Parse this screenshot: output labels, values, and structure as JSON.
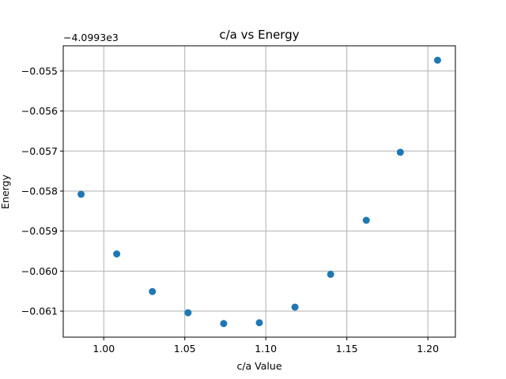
{
  "chart_data": {
    "type": "scatter",
    "title": "c/a vs Energy",
    "xlabel": "c/a Value",
    "ylabel": "Energy",
    "offset_text": "−4.0993e3",
    "x": [
      0.986,
      1.008,
      1.03,
      1.052,
      1.074,
      1.096,
      1.118,
      1.14,
      1.162,
      1.183,
      1.206
    ],
    "y": [
      -0.05808,
      -0.05957,
      -0.06051,
      -0.06104,
      -0.06131,
      -0.06129,
      -0.0609,
      -0.06008,
      -0.05873,
      -0.05703,
      -0.05473
    ],
    "xlim": [
      0.975,
      1.217
    ],
    "ylim": [
      -0.06165,
      -0.05437
    ],
    "xticks": [
      1.0,
      1.05,
      1.1,
      1.15,
      1.2
    ],
    "xtick_labels": [
      "1.00",
      "1.05",
      "1.10",
      "1.15",
      "1.20"
    ],
    "yticks": [
      -0.061,
      -0.06,
      -0.059,
      -0.058,
      -0.057,
      -0.056,
      -0.055
    ],
    "ytick_labels": [
      "−0.061",
      "−0.060",
      "−0.059",
      "−0.058",
      "−0.057",
      "−0.056",
      "−0.055"
    ],
    "grid": true,
    "marker_color": "#1f77b4"
  }
}
